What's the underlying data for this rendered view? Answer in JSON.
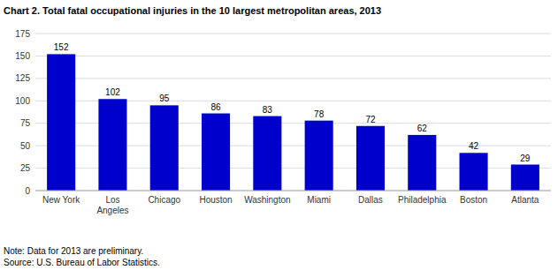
{
  "chart_data": {
    "type": "bar",
    "title": "Chart 2.  Total fatal occupational injuries in the 10 largest metropolitan areas, 2013",
    "categories": [
      "New York",
      "Los\nAngeles",
      "Chicago",
      "Houston",
      "Washington",
      "Miami",
      "Dallas",
      "Philadelphia",
      "Boston",
      "Atlanta"
    ],
    "values": [
      152,
      102,
      95,
      86,
      83,
      78,
      72,
      62,
      42,
      29
    ],
    "color": "#0000CC",
    "ylim": [
      0,
      175
    ],
    "yticks": [
      0,
      25,
      50,
      75,
      100,
      125,
      150,
      175
    ],
    "grid": true,
    "data_labels": true,
    "note": "Note: Data for 2013 are preliminary.\nSource: U.S. Bureau of Labor Statistics."
  }
}
